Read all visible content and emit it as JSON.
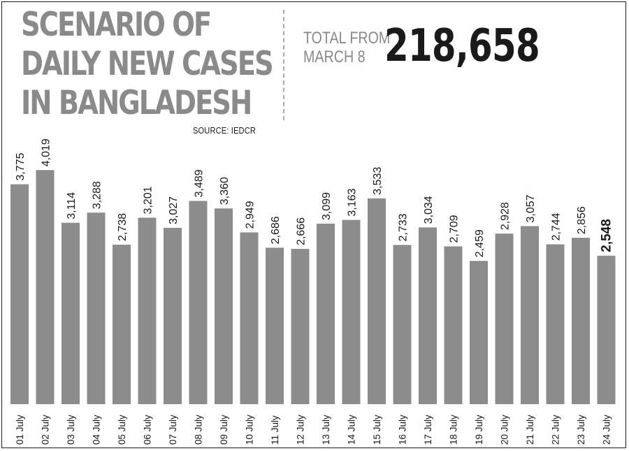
{
  "title_lines": [
    "SCENARIO OF",
    "DAILY NEW CASES",
    "IN BANGLADESH"
  ],
  "source": "SOURCE: IEDCR",
  "total": {
    "label_lines": [
      "TOTAL FROM",
      "MARCH 8"
    ],
    "value": "218,658"
  },
  "colors": {
    "bar": "#8c8c8c",
    "title": "#8a8a8a",
    "text": "#1a1a1a"
  },
  "chart_data": {
    "type": "bar",
    "categories": [
      "01 July",
      "02 July",
      "03 July",
      "04 July",
      "05 July",
      "06 July",
      "07 July",
      "08 July",
      "09 July",
      "10 July",
      "11 July",
      "12 July",
      "13 July",
      "14 July",
      "15 July",
      "16 July",
      "17 July",
      "18 July",
      "19 July",
      "20 July",
      "21 July",
      "22 July",
      "23 July",
      "24 July"
    ],
    "values": [
      3775,
      4019,
      3114,
      3288,
      2738,
      3201,
      3027,
      3489,
      3360,
      2949,
      2686,
      2666,
      3099,
      3163,
      3533,
      2733,
      3034,
      2709,
      2459,
      2928,
      3057,
      2744,
      2856,
      2548
    ],
    "value_labels": [
      "3,775",
      "4,019",
      "3,114",
      "3,288",
      "2,738",
      "3,201",
      "3,027",
      "3,489",
      "3,360",
      "2,949",
      "2,686",
      "2,666",
      "3,099",
      "3,163",
      "3,533",
      "2,733",
      "3,034",
      "2,709",
      "2,459",
      "2,928",
      "3,057",
      "2,744",
      "2,856",
      "2,548"
    ],
    "highlight_index": 23,
    "grid": false,
    "legend": "none"
  }
}
